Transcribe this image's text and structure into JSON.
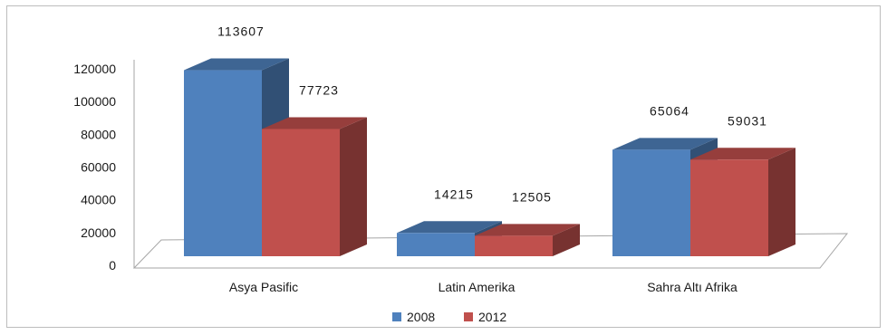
{
  "chart_data": {
    "type": "bar",
    "title": "",
    "xlabel": "",
    "ylabel": "",
    "categories": [
      "Asya Pasific",
      "Latin Amerika",
      "Sahra Altı Afrika"
    ],
    "series": [
      {
        "name": "2008",
        "values": [
          113607,
          14215,
          65064
        ],
        "color": "#4F81BD"
      },
      {
        "name": "2012",
        "values": [
          77723,
          12505,
          59031
        ],
        "color": "#C0504D"
      }
    ],
    "ylim": [
      0,
      120000
    ],
    "yticks": [
      "0",
      "20000",
      "40000",
      "60000",
      "80000",
      "100000",
      "120000"
    ],
    "data_labels": [
      [
        "113607",
        "14215",
        "65064"
      ],
      [
        "77723",
        "12505",
        "59031"
      ]
    ],
    "style": "3d-clustered-column",
    "legend_position": "bottom",
    "grid": false
  }
}
